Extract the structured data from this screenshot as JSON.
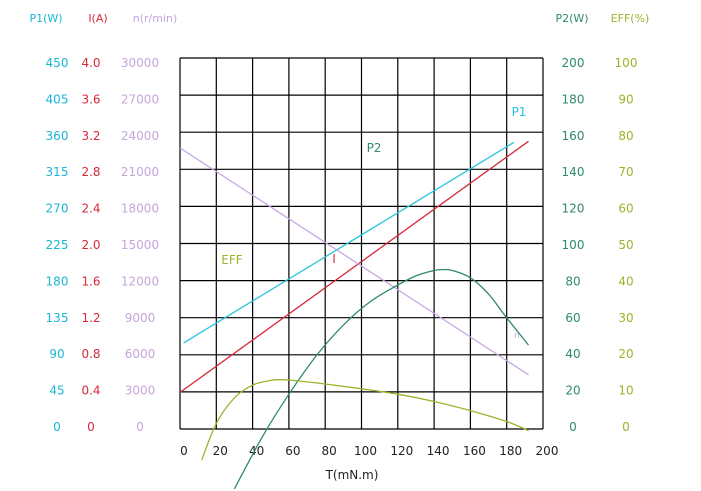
{
  "chart_data": {
    "type": "line",
    "xlabel": "T(mN.m)",
    "xlim": [
      0,
      200
    ],
    "x_ticks": [
      "0",
      "20",
      "40",
      "60",
      "80",
      "100",
      "120",
      "140",
      "160",
      "180",
      "200"
    ],
    "axes": {
      "P1": {
        "label": "P1(W)",
        "color": "#1ab6d6",
        "ticks": [
          "0",
          "45",
          "90",
          "135",
          "180",
          "225",
          "270",
          "315",
          "360",
          "405",
          "450"
        ],
        "range": [
          0,
          450
        ]
      },
      "I": {
        "label": "I(A)",
        "color": "#d62a3a",
        "ticks": [
          "0",
          "0.4",
          "0.8",
          "1.2",
          "1.6",
          "2.0",
          "2.4",
          "2.8",
          "3.2",
          "3.6",
          "4.0"
        ],
        "range": [
          0,
          4.0
        ]
      },
      "n": {
        "label": "n(r/min)",
        "color": "#c5a6dc",
        "ticks": [
          "0",
          "3000",
          "6000",
          "9000",
          "12000",
          "15000",
          "18000",
          "21000",
          "24000",
          "27000",
          "30000"
        ],
        "range": [
          0,
          30000
        ]
      },
      "P2": {
        "label": "P2(W)",
        "color": "#2e8a6a",
        "ticks": [
          "0",
          "20",
          "40",
          "60",
          "80",
          "100",
          "120",
          "140",
          "160",
          "180",
          "200"
        ],
        "range": [
          0,
          200
        ]
      },
      "EFF": {
        "label": "EFF(%)",
        "color": "#9ab52c",
        "ticks": [
          "0",
          "10",
          "20",
          "30",
          "40",
          "50",
          "60",
          "70",
          "80",
          "90",
          "100"
        ],
        "range": [
          0,
          100
        ]
      }
    },
    "series": [
      {
        "name": "P1",
        "axis": "P1",
        "color": "#27c4dc",
        "x": [
          2,
          184
        ],
        "y": [
          104,
          352
        ]
      },
      {
        "name": "I",
        "axis": "I",
        "color": "#d62a3a",
        "x": [
          0,
          192
        ],
        "y": [
          0.38,
          3.14
        ]
      },
      {
        "name": "n",
        "axis": "n",
        "color": "#c9a8e0",
        "x": [
          0,
          192
        ],
        "y": [
          23000,
          4300
        ]
      },
      {
        "name": "P2",
        "axis": "P2",
        "color": "#2e8a6a",
        "x": [
          30,
          45,
          60,
          75,
          90,
          105,
          120,
          130,
          140,
          145,
          150,
          160,
          170,
          180,
          192
        ],
        "y": [
          -34,
          -6,
          18,
          39,
          56,
          69,
          78,
          83,
          86,
          86.5,
          86,
          82,
          73,
          60,
          45
        ]
      },
      {
        "name": "EFF",
        "axis": "EFF",
        "color": "#9ab52c",
        "x": [
          12,
          20,
          30,
          40,
          50,
          55,
          60,
          70,
          80,
          100,
          120,
          140,
          160,
          180,
          192
        ],
        "y": [
          -9,
          1,
          8,
          11.5,
          12.8,
          13,
          12.9,
          12.4,
          11.8,
          10.5,
          9,
          7,
          4.5,
          1.5,
          -1
        ]
      }
    ],
    "series_labels": [
      {
        "text": "P1",
        "color": "#27c4dc"
      },
      {
        "text": "P2",
        "color": "#2e8a6a"
      },
      {
        "text": "I",
        "color": "#d62a3a"
      },
      {
        "text": "EFF",
        "color": "#9ab52c"
      },
      {
        "text": "n",
        "color": "#c9a8e0"
      }
    ],
    "grid": true
  }
}
